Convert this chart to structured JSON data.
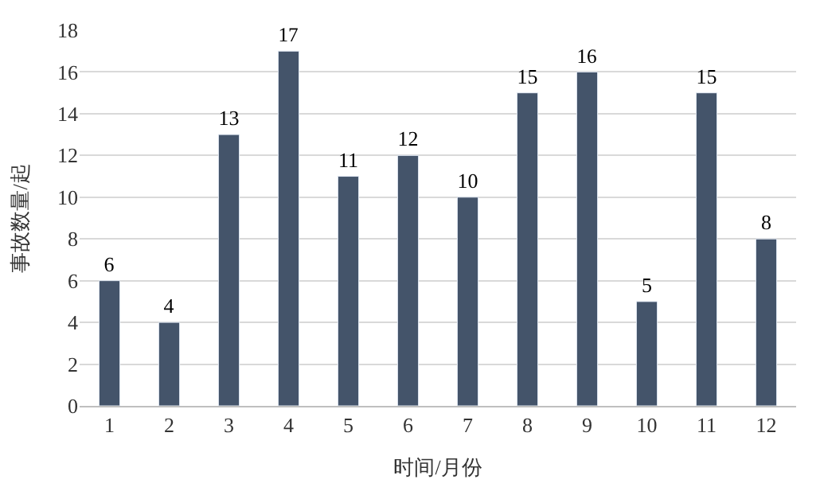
{
  "chart_data": {
    "type": "bar",
    "xlabel": "时间/月份",
    "ylabel": "事故数量/起",
    "categories": [
      "1",
      "2",
      "3",
      "4",
      "5",
      "6",
      "7",
      "8",
      "9",
      "10",
      "11",
      "12"
    ],
    "values": [
      6,
      4,
      13,
      17,
      11,
      12,
      10,
      15,
      16,
      5,
      15,
      8
    ],
    "color": "#44546a",
    "ylim": [
      0,
      18
    ],
    "yticks": [
      0,
      2,
      4,
      6,
      8,
      10,
      12,
      14,
      16,
      18
    ],
    "grid": "y",
    "data_labels": true
  }
}
